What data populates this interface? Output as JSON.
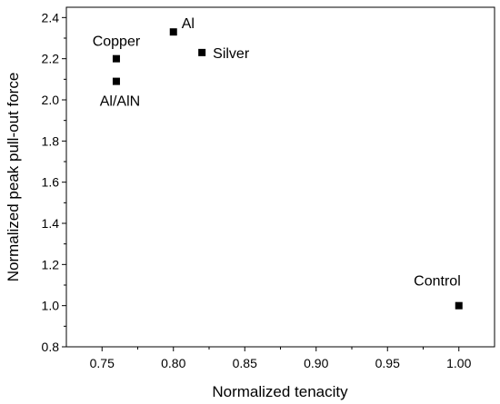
{
  "chart_data": {
    "type": "scatter",
    "xlabel": "Normalized tenacity",
    "ylabel": "Normalized peak pull-out force",
    "xlim": [
      0.725,
      1.025
    ],
    "ylim": [
      0.8,
      2.45
    ],
    "xticks": [
      0.75,
      0.8,
      0.85,
      0.9,
      0.95,
      1.0
    ],
    "xtick_labels": [
      "0.75",
      "0.80",
      "0.85",
      "0.90",
      "0.95",
      "1.00"
    ],
    "yticks": [
      0.8,
      1.0,
      1.2,
      1.4,
      1.6,
      1.8,
      2.0,
      2.2,
      2.4
    ],
    "ytick_labels": [
      "0.8",
      "1.0",
      "1.2",
      "1.4",
      "1.6",
      "1.8",
      "2.0",
      "2.2",
      "2.4"
    ],
    "grid": false,
    "legend": false,
    "marker": "square",
    "marker_color": "#000000",
    "points": [
      {
        "label": "Copper",
        "x": 0.76,
        "y": 2.2,
        "label_pos": "above"
      },
      {
        "label": "Al/AlN",
        "x": 0.76,
        "y": 2.09,
        "label_pos": "below"
      },
      {
        "label": "Al",
        "x": 0.8,
        "y": 2.33,
        "label_pos": "above-right"
      },
      {
        "label": "Silver",
        "x": 0.82,
        "y": 2.23,
        "label_pos": "right"
      },
      {
        "label": "Control",
        "x": 1.0,
        "y": 1.0,
        "label_pos": "above-left"
      }
    ]
  }
}
